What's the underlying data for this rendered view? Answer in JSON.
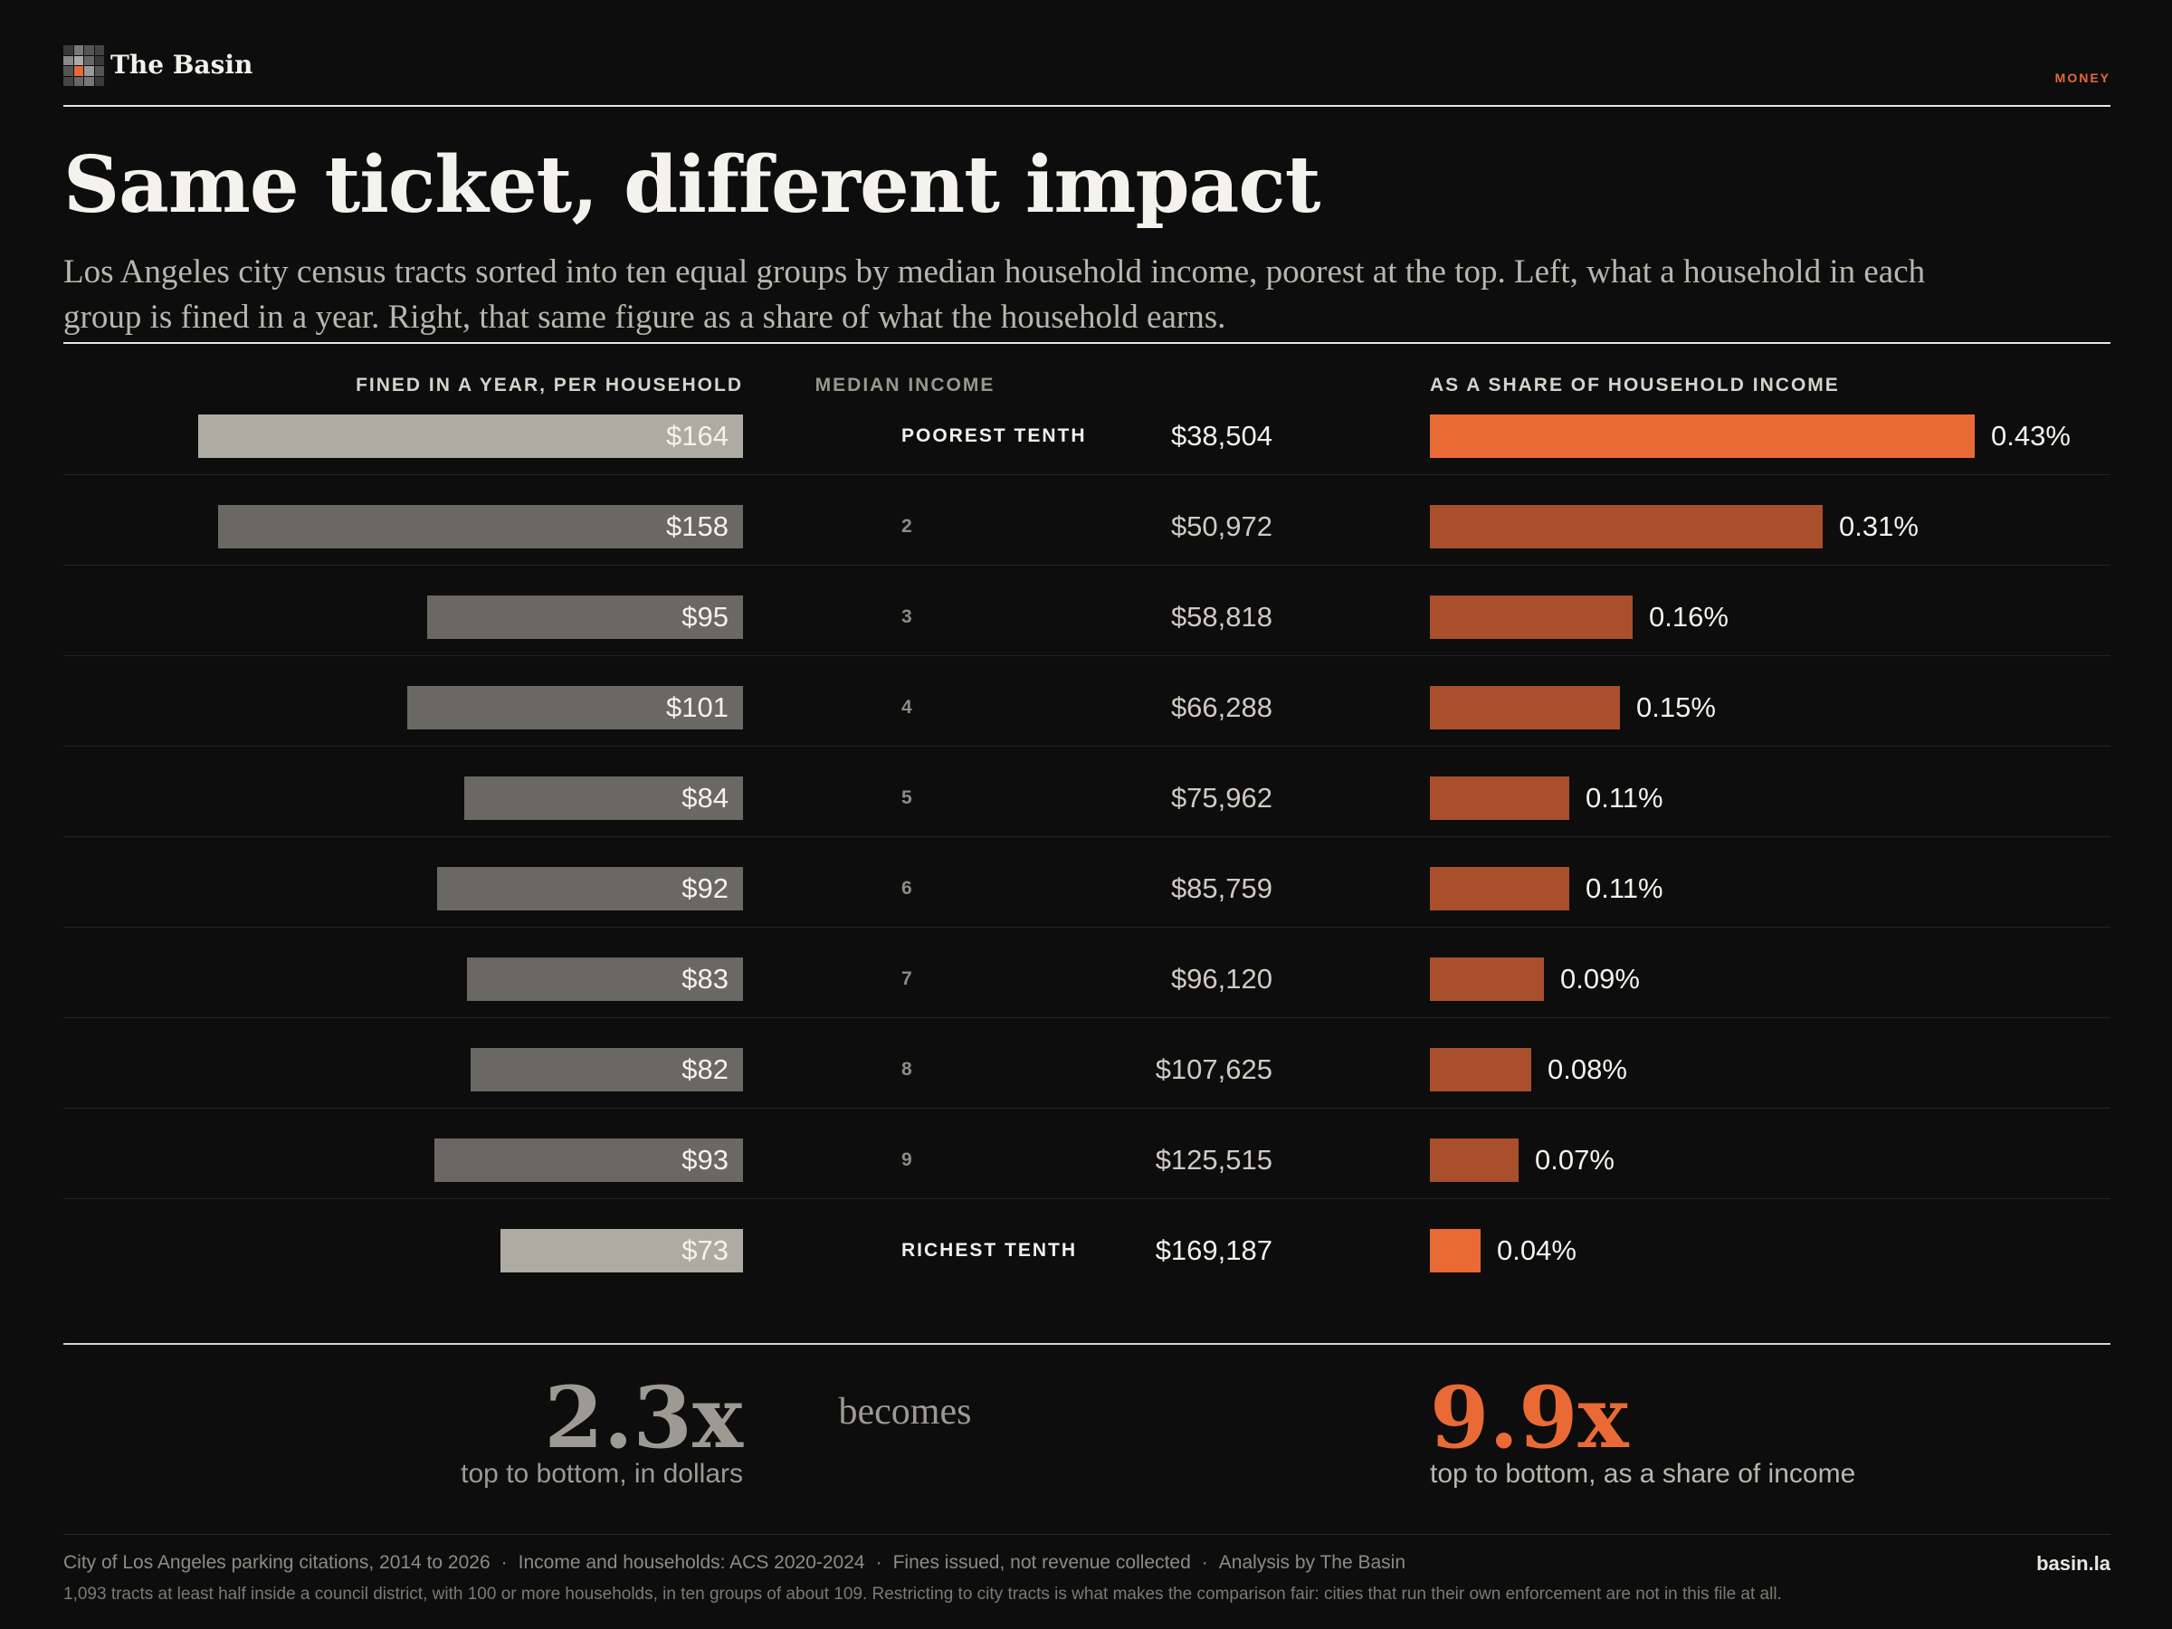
{
  "brand": {
    "name": "The Basin",
    "section": "MONEY"
  },
  "headline": "Same ticket, different impact",
  "subtitle": "Los Angeles city census tracts sorted into ten equal groups by median household income, poorest at the top. Left, what a household in each group is fined in a year. Right, that same figure as a share of what the household earns.",
  "columns": {
    "left": "FINED IN A YEAR, PER HOUSEHOLD",
    "middle": "MEDIAN INCOME",
    "right": "AS A SHARE OF HOUSEHOLD INCOME"
  },
  "chart_data": {
    "type": "bar",
    "categories": [
      "POOREST TENTH",
      "2",
      "3",
      "4",
      "5",
      "6",
      "7",
      "8",
      "9",
      "RICHEST TENTH"
    ],
    "median_income": [
      "$38,504",
      "$50,972",
      "$58,818",
      "$66,288",
      "$75,962",
      "$85,759",
      "$96,120",
      "$107,625",
      "$125,515",
      "$169,187"
    ],
    "series": [
      {
        "values": [
          164,
          158,
          95,
          101,
          84,
          92,
          83,
          82,
          93,
          73
        ],
        "labels": [
          "$164",
          "$158",
          "$95",
          "$101",
          "$84",
          "$92",
          "$83",
          "$82",
          "$93",
          "$73"
        ]
      },
      {
        "values": [
          0.43,
          0.31,
          0.16,
          0.15,
          0.11,
          0.11,
          0.09,
          0.08,
          0.07,
          0.04
        ],
        "labels": [
          "0.43%",
          "0.31%",
          "0.16%",
          "0.15%",
          "0.11%",
          "0.11%",
          "0.09%",
          "0.08%",
          "0.07%",
          "0.04%"
        ]
      }
    ],
    "left_xlim": [
      0,
      164
    ],
    "right_xlim": [
      0,
      0.43
    ],
    "highlight_rows": [
      0,
      9
    ],
    "colors": {
      "left_bar": "#6a6862",
      "left_bar_highlight": "#aeaba2",
      "right_bar": "#a94f2b",
      "right_bar_highlight": "#ea6a36"
    }
  },
  "summary": {
    "left_value": "2.3x",
    "left_caption": "top to bottom, in dollars",
    "connector": "becomes",
    "right_value": "9.9x",
    "right_caption": "top to bottom, as a share of income"
  },
  "footer": {
    "sources": [
      "City of Los Angeles parking citations, 2014 to 2026",
      "Income and households: ACS 2020-2024",
      "Fines issued, not revenue collected",
      "Analysis by The Basin"
    ],
    "separator": "·",
    "note": "1,093 tracts at least half inside a council district, with 100 or more households, in ten groups of about 109. Restricting to city tracts is what makes the comparison fair: cities that run their own enforcement are not in this file at all.",
    "site": "basin.la"
  }
}
